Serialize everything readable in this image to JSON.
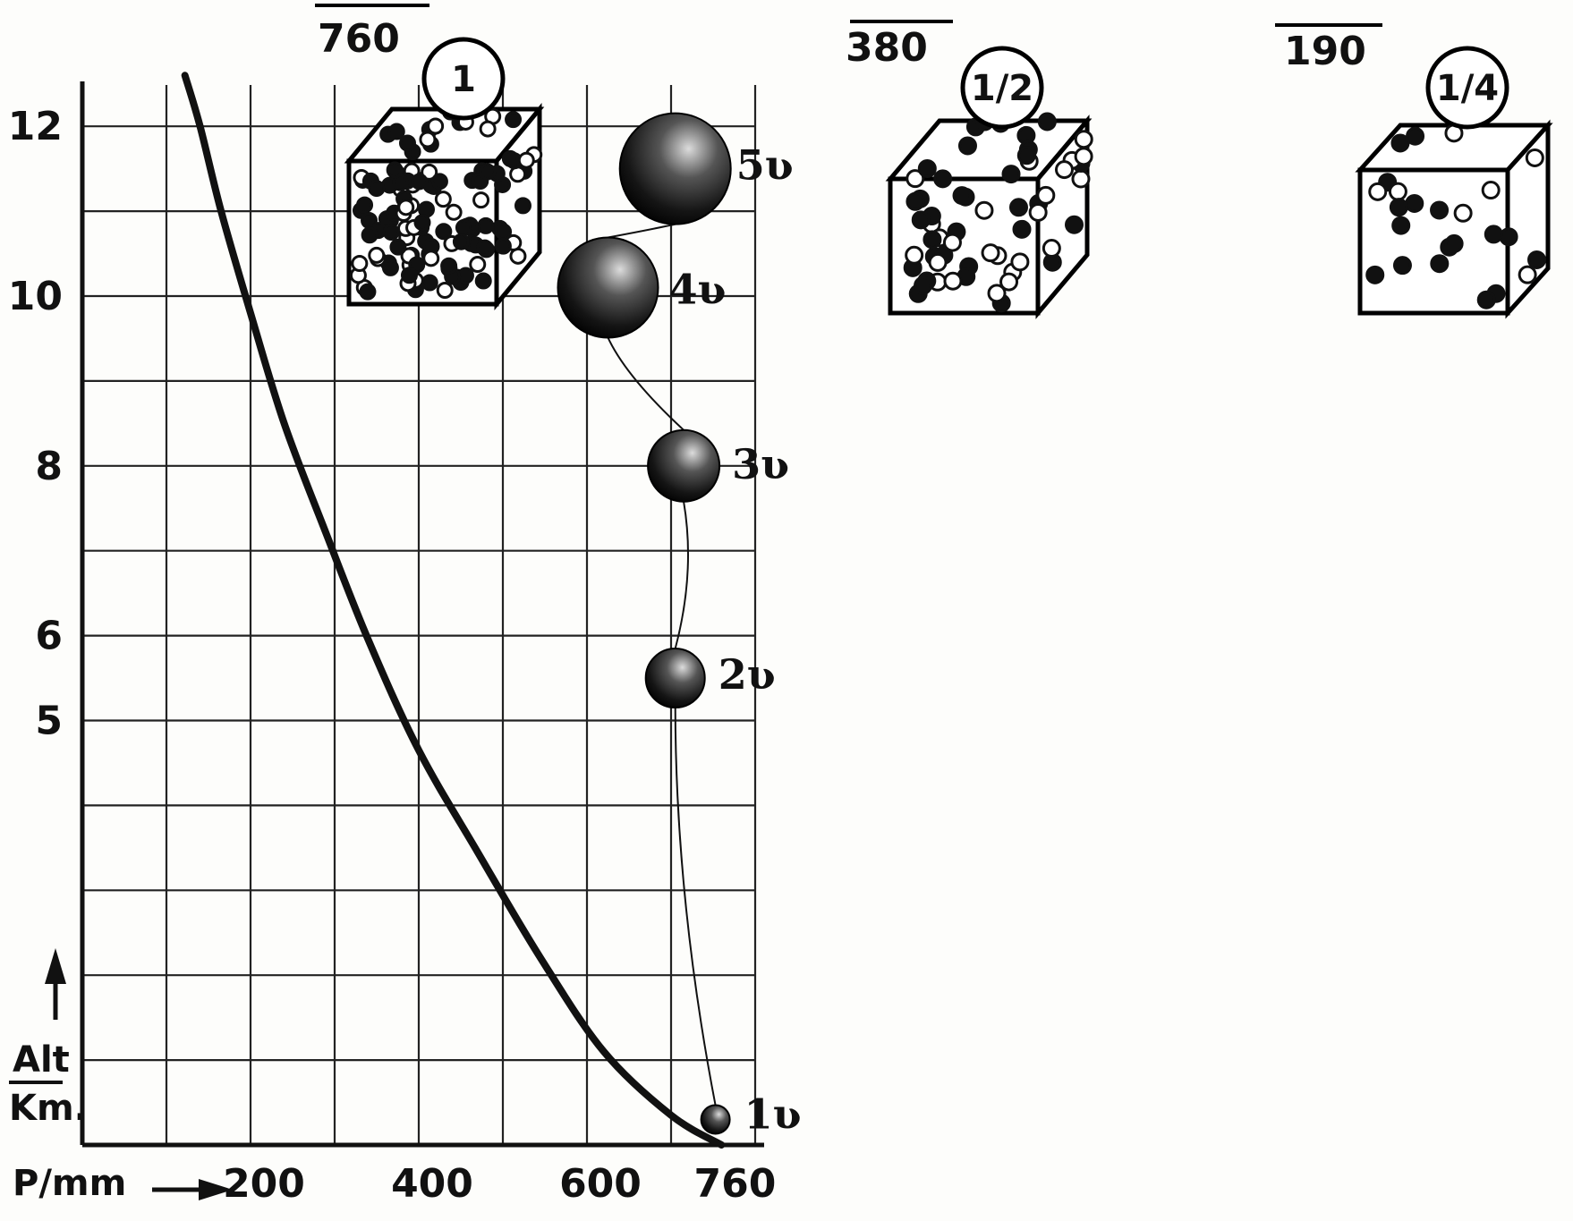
{
  "chart_data": {
    "type": "line",
    "xlabel": "P/mm",
    "ylabel_top": "Alt",
    "ylabel_bottom": "Km.",
    "x_ticks": [
      "200",
      "400",
      "600",
      "760"
    ],
    "x_tick_values": [
      200,
      400,
      600,
      760
    ],
    "y_ticks": [
      "5",
      "6",
      "8",
      "10",
      "12"
    ],
    "y_tick_values": [
      5,
      6,
      8,
      10,
      12
    ],
    "xlim": [
      0,
      800
    ],
    "ylim": [
      0,
      12.5
    ],
    "grid": true,
    "series": [
      {
        "x": [
          760,
          700,
          620,
          545,
          470,
          400,
          340,
          290,
          240,
          200,
          165,
          140,
          122
        ],
        "y": [
          0,
          0.35,
          1.1,
          2.2,
          3.45,
          4.65,
          5.95,
          7.2,
          8.5,
          9.8,
          11.0,
          12.0,
          12.6
        ]
      }
    ],
    "balloons": [
      {
        "label": "1ʋ",
        "alt": 0.3,
        "p": 740
      },
      {
        "label": "2ʋ",
        "alt": 5.5,
        "p": 705
      },
      {
        "label": "3ʋ",
        "alt": 8.0,
        "p": 715
      },
      {
        "label": "4ʋ",
        "alt": 10.1,
        "p": 625
      },
      {
        "label": "5ʋ",
        "alt": 11.5,
        "p": 705
      }
    ],
    "cubes": [
      {
        "fraction": "760",
        "circle": "1",
        "density": "high"
      },
      {
        "fraction": "380",
        "circle": "1/2",
        "density": "medium"
      },
      {
        "fraction": "190",
        "circle": "1/4",
        "density": "low"
      }
    ]
  }
}
